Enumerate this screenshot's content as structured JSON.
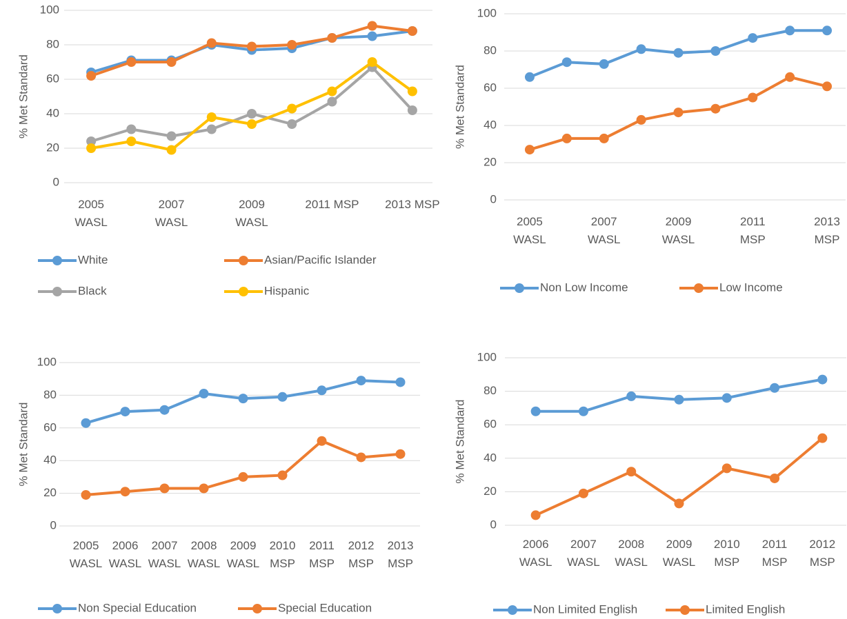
{
  "chart_data": [
    {
      "type": "line",
      "y_label": "% Met Standard",
      "ylim": [
        0,
        100
      ],
      "yticks": [
        0,
        20,
        40,
        60,
        80,
        100
      ],
      "grid": true,
      "categories": [
        "2005 WASL",
        null,
        "2007 WASL",
        null,
        "2009 WASL",
        null,
        "2011 MSP",
        null,
        "2013 MSP"
      ],
      "series": [
        {
          "name": "White",
          "color": "#5b9bd5",
          "values": [
            64,
            71,
            71,
            80,
            77,
            78,
            84,
            85,
            88
          ]
        },
        {
          "name": "Asian/Pacific Islander",
          "color": "#ed7d31",
          "values": [
            62,
            70,
            70,
            81,
            79,
            80,
            84,
            91,
            88
          ]
        },
        {
          "name": "Black",
          "color": "#a5a5a5",
          "values": [
            24,
            31,
            27,
            31,
            40,
            34,
            47,
            67,
            42
          ]
        },
        {
          "name": "Hispanic",
          "color": "#ffc000",
          "values": [
            20,
            24,
            19,
            38,
            34,
            43,
            53,
            70,
            53
          ]
        }
      ]
    },
    {
      "type": "line",
      "y_label": "% Met Standard",
      "ylim": [
        0,
        100
      ],
      "yticks": [
        0,
        20,
        40,
        60,
        80,
        100
      ],
      "grid": true,
      "categories": [
        "2005 WASL",
        null,
        "2007 WASL",
        null,
        "2009 WASL",
        null,
        "2011 MSP",
        null,
        "2013 MSP"
      ],
      "series": [
        {
          "name": "Non Low Income",
          "color": "#5b9bd5",
          "values": [
            66,
            74,
            73,
            81,
            79,
            80,
            87,
            91,
            91
          ]
        },
        {
          "name": "Low Income",
          "color": "#ed7d31",
          "values": [
            27,
            33,
            33,
            43,
            47,
            49,
            55,
            66,
            61
          ]
        }
      ]
    },
    {
      "type": "line",
      "y_label": "% Met Standard",
      "ylim": [
        0,
        100
      ],
      "yticks": [
        0,
        20,
        40,
        60,
        80,
        100
      ],
      "grid": true,
      "categories": [
        "2005 WASL",
        "2006 WASL",
        "2007 WASL",
        "2008 WASL",
        "2009 WASL",
        "2010 MSP",
        "2011 MSP",
        "2012 MSP",
        "2013 MSP"
      ],
      "series": [
        {
          "name": "Non Special Education",
          "color": "#5b9bd5",
          "values": [
            63,
            70,
            71,
            81,
            78,
            79,
            83,
            89,
            88
          ]
        },
        {
          "name": "Special Education",
          "color": "#ed7d31",
          "values": [
            19,
            21,
            23,
            23,
            30,
            31,
            52,
            42,
            44
          ]
        }
      ]
    },
    {
      "type": "line",
      "y_label": "% Met Standard",
      "ylim": [
        0,
        100
      ],
      "yticks": [
        0,
        20,
        40,
        60,
        80,
        100
      ],
      "grid": true,
      "categories": [
        "2006 WASL",
        "2007 WASL",
        "2008 WASL",
        "2009 WASL",
        "2010 MSP",
        "2011 MSP",
        "2012 MSP"
      ],
      "series": [
        {
          "name": "Non Limited English",
          "color": "#5b9bd5",
          "values": [
            68,
            68,
            77,
            75,
            76,
            82,
            87
          ]
        },
        {
          "name": "Limited English",
          "color": "#ed7d31",
          "values": [
            6,
            19,
            32,
            13,
            34,
            28,
            52
          ]
        }
      ]
    }
  ]
}
